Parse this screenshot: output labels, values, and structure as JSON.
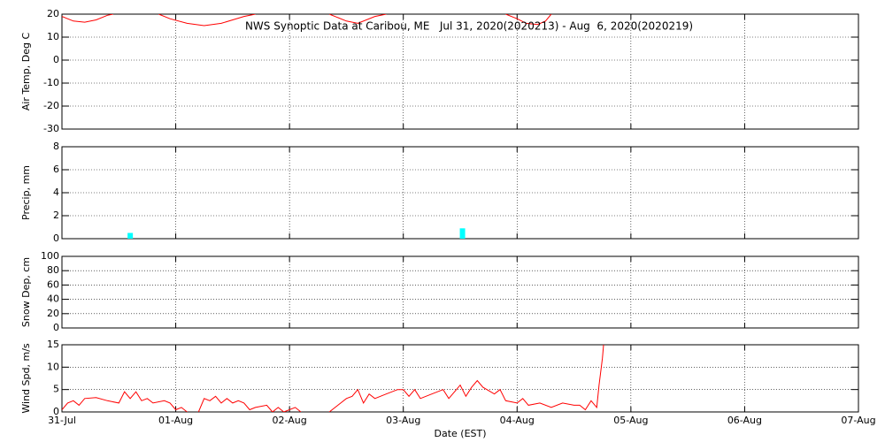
{
  "title": "NWS Synoptic Data at Caribou, ME   Jul 31, 2020(2020213) - Aug  6, 2020(2020219)",
  "chart_data": [
    {
      "type": "line",
      "ylabel": "Air Temp, Deg C",
      "xlim": [
        0,
        7
      ],
      "ylim": [
        -30,
        20
      ],
      "yticks": [
        -30,
        -20,
        -10,
        0,
        10,
        20
      ],
      "series": [
        {
          "color": "#ff0000",
          "x": [
            0,
            0.1,
            0.2,
            0.3,
            0.4,
            0.45,
            null,
            0.85,
            0.95,
            1.1,
            1.25,
            1.4,
            1.5,
            1.6,
            1.7,
            null,
            2.35,
            2.5,
            2.6,
            2.75,
            2.85,
            null,
            3.9,
            4.0,
            4.08,
            4.18,
            4.25,
            4.3
          ],
          "values": [
            19,
            17,
            16.5,
            17.5,
            19.5,
            20,
            null,
            20,
            18,
            16,
            15,
            16,
            17.5,
            19,
            20,
            null,
            20,
            17,
            16,
            19,
            20,
            null,
            20,
            18,
            16,
            15.5,
            17,
            20
          ]
        }
      ]
    },
    {
      "type": "bar",
      "ylabel": "Precip, mm",
      "xlim": [
        0,
        7
      ],
      "ylim": [
        0,
        8
      ],
      "yticks": [
        0,
        2,
        4,
        6,
        8
      ],
      "series": [
        {
          "color": "#00ffff",
          "x": [
            0.6,
            3.52
          ],
          "values": [
            0.5,
            0.9
          ]
        }
      ]
    },
    {
      "type": "line",
      "ylabel": "Snow Dep, cm",
      "xlim": [
        0,
        7
      ],
      "ylim": [
        0,
        100
      ],
      "yticks": [
        0,
        20,
        40,
        60,
        80,
        100
      ],
      "series": []
    },
    {
      "type": "line",
      "ylabel": "Wind Spd, m/s",
      "xlabel": "Date (EST)",
      "xlim": [
        0,
        7
      ],
      "ylim": [
        0,
        15
      ],
      "yticks": [
        0,
        5,
        10,
        15
      ],
      "xticks": [
        {
          "value": 0,
          "label": "31-Jul"
        },
        {
          "value": 1,
          "label": "01-Aug"
        },
        {
          "value": 2,
          "label": "02-Aug"
        },
        {
          "value": 3,
          "label": "03-Aug"
        },
        {
          "value": 4,
          "label": "04-Aug"
        },
        {
          "value": 5,
          "label": "05-Aug"
        },
        {
          "value": 6,
          "label": "06-Aug"
        },
        {
          "value": 7,
          "label": "07-Aug"
        }
      ],
      "series": [
        {
          "color": "#ff0000",
          "x": [
            0,
            0.05,
            0.1,
            0.15,
            0.2,
            0.3,
            0.4,
            0.5,
            0.55,
            0.6,
            0.65,
            0.7,
            0.75,
            0.8,
            0.9,
            0.95,
            1.0,
            1.05,
            1.1,
            null,
            1.2,
            1.25,
            1.3,
            1.35,
            1.4,
            1.45,
            1.5,
            1.55,
            1.6,
            1.65,
            1.7,
            1.8,
            1.85,
            1.9,
            1.95,
            2.05,
            2.1,
            null,
            2.35,
            2.45,
            2.5,
            2.55,
            2.6,
            2.65,
            2.7,
            2.75,
            2.85,
            2.95,
            3.0,
            3.05,
            3.1,
            3.15,
            3.25,
            3.35,
            3.4,
            3.45,
            3.5,
            3.55,
            3.6,
            3.65,
            3.7,
            3.8,
            3.85,
            3.9,
            4.0,
            4.05,
            4.1,
            4.2,
            4.3,
            4.4,
            4.5,
            4.55,
            4.6,
            4.65,
            4.7,
            4.72,
            4.75,
            4.76
          ],
          "values": [
            0.5,
            2,
            2.5,
            1.5,
            3,
            3.2,
            2.5,
            2,
            4.5,
            3,
            4.5,
            2.5,
            3,
            2,
            2.5,
            2,
            0.5,
            1,
            0,
            null,
            0,
            3,
            2.5,
            3.5,
            2,
            3,
            2,
            2.5,
            2,
            0.5,
            1,
            1.5,
            0,
            1,
            0,
            1,
            0,
            null,
            0,
            2,
            3,
            3.5,
            5,
            2,
            4,
            3,
            4,
            5,
            5,
            3.5,
            5,
            3,
            4,
            5,
            3,
            4.5,
            6,
            3.5,
            5.5,
            7,
            5.5,
            4,
            5,
            2.5,
            2,
            3,
            1.5,
            2,
            1,
            2,
            1.5,
            1.5,
            0.5,
            2.5,
            1,
            6,
            12,
            15
          ]
        }
      ]
    }
  ]
}
